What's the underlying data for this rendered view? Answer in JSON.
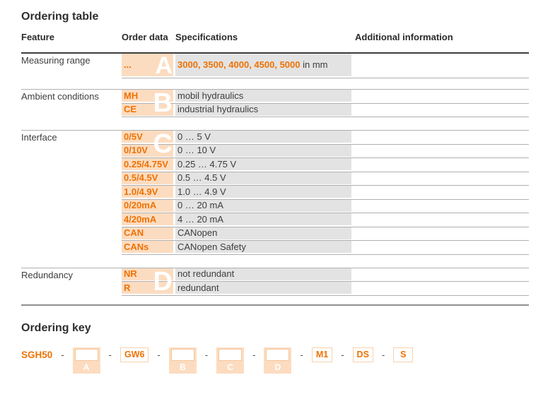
{
  "colors": {
    "accent": "#ee7203",
    "order_cell_bg": "#fcdcc0",
    "spec_cell_bg": "#e3e3e3",
    "row_line": "#b0b0b0",
    "header_rule": "#3d3d3d",
    "letter_color": "#ffffff"
  },
  "ordering_table": {
    "title": "Ordering table",
    "columns": {
      "feature": "Feature",
      "order_data": "Order data",
      "specifications": "Specifications",
      "additional": "Additional information"
    },
    "groups": [
      {
        "feature": "Measuring range",
        "letter": "A",
        "rows": [
          {
            "code": "...",
            "spec_strong": "3000, 3500, 4000, 4500, 5000",
            "spec_rest": " in mm"
          }
        ]
      },
      {
        "feature": "Ambient conditions",
        "letter": "B",
        "rows": [
          {
            "code": "MH",
            "spec": "mobil hydraulics"
          },
          {
            "code": "CE",
            "spec": "industrial hydraulics"
          }
        ]
      },
      {
        "feature": "Interface",
        "letter": "C",
        "rows": [
          {
            "code": "0/5V",
            "spec": "0 … 5 V"
          },
          {
            "code": "0/10V",
            "spec": "0 … 10 V"
          },
          {
            "code": "0.25/4.75V",
            "spec": "0.25 … 4.75 V"
          },
          {
            "code": "0.5/4.5V",
            "spec": "0.5 … 4.5 V"
          },
          {
            "code": "1.0/4.9V",
            "spec": "1.0 … 4.9 V"
          },
          {
            "code": "0/20mA",
            "spec": "0 … 20 mA"
          },
          {
            "code": "4/20mA",
            "spec": "4 … 20 mA"
          },
          {
            "code": "CAN",
            "spec": "CANopen"
          },
          {
            "code": "CANs",
            "spec": "CANopen Safety"
          }
        ]
      },
      {
        "feature": "Redundancy",
        "letter": "D",
        "rows": [
          {
            "code": "NR",
            "spec": "not redundant"
          },
          {
            "code": "R",
            "spec": "redundant"
          }
        ]
      }
    ]
  },
  "ordering_key": {
    "title": "Ordering key",
    "prefix": "SGH50",
    "separator": "-",
    "slots": [
      {
        "letter": "A"
      },
      {
        "letter": "B"
      },
      {
        "letter": "C"
      },
      {
        "letter": "D"
      }
    ],
    "codes": [
      {
        "value": "GW6"
      },
      {
        "value": "M1"
      },
      {
        "value": "DS"
      },
      {
        "value": "S"
      }
    ]
  }
}
